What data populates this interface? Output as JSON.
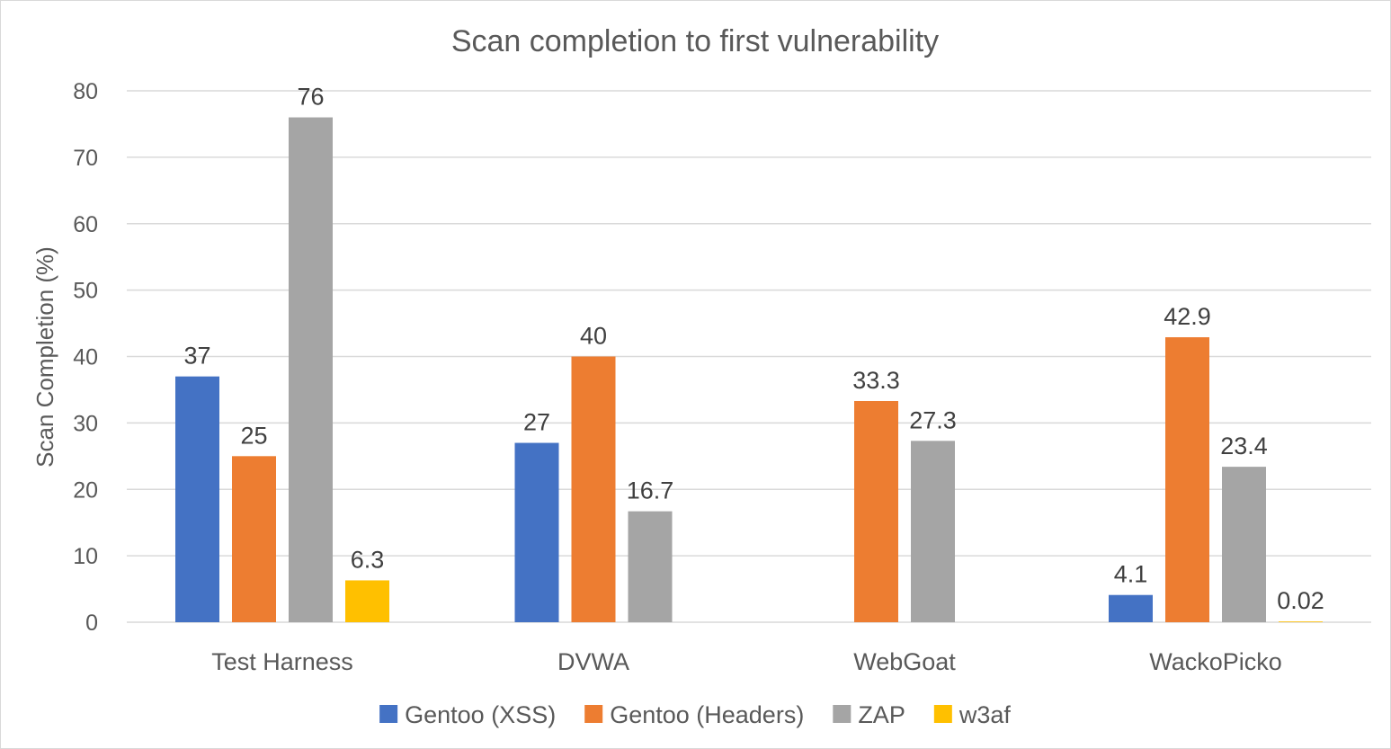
{
  "chart_data": {
    "type": "bar",
    "title": "Scan completion to first vulnerability",
    "xlabel": "",
    "ylabel": "Scan Completion (%)",
    "ylim": [
      0,
      80
    ],
    "yticks": [
      0,
      10,
      20,
      30,
      40,
      50,
      60,
      70,
      80
    ],
    "grid": true,
    "legend_position": "bottom",
    "categories": [
      "Test Harness",
      "DVWA",
      "WebGoat",
      "WackoPicko"
    ],
    "series": [
      {
        "name": "Gentoo (XSS)",
        "color": "#4472C4",
        "values": [
          37,
          27,
          null,
          4.1
        ],
        "labels": [
          "37",
          "27",
          "",
          "4.1"
        ]
      },
      {
        "name": "Gentoo (Headers)",
        "color": "#ED7D31",
        "values": [
          25,
          40,
          33.3,
          42.9
        ],
        "labels": [
          "25",
          "40",
          "33.3",
          "42.9"
        ]
      },
      {
        "name": "ZAP",
        "color": "#A5A5A5",
        "values": [
          76,
          16.7,
          27.3,
          23.4
        ],
        "labels": [
          "76",
          "16.7",
          "27.3",
          "23.4"
        ]
      },
      {
        "name": "w3af",
        "color": "#FFC000",
        "values": [
          6.3,
          null,
          null,
          0.02
        ],
        "labels": [
          "6.3",
          "",
          "",
          "0.02"
        ]
      }
    ]
  }
}
